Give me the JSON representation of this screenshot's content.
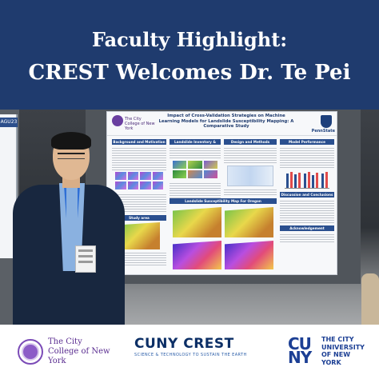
{
  "header": {
    "line1": "Faculty Highlight:",
    "line2": "CREST Welcomes Dr. Te Pei",
    "background": "#1f3b6e"
  },
  "photo": {
    "left_board_tag": "AGU23",
    "poster": {
      "institution": "The City College of New York",
      "title": "Impact of Cross-Validation Strategies on Machine Learning Models for Landslide Susceptibility Mapping: A Comparative Study",
      "partner": "PennState",
      "sections": {
        "background": "Background and Motivation",
        "inventory": "Landslide Inventory & Geospatial Data",
        "design": "Design and Methods",
        "performance": "Model Performance Comparison",
        "study_area": "Study area",
        "maps": "Landslide Susceptibility Map For Oregon",
        "discussion": "Discussion and Conclusions",
        "ack": "Acknowledgement"
      }
    }
  },
  "footer": {
    "ccny_name": "The City College of New York",
    "crest_main": "CUNY CREST",
    "crest_sub": "SCIENCE & TECHNOLOGY TO SUSTAIN THE EARTH",
    "cuny_mark": "CU NY",
    "cuny_name": "THE CITY UNIVERSITY OF NEW YORK"
  }
}
